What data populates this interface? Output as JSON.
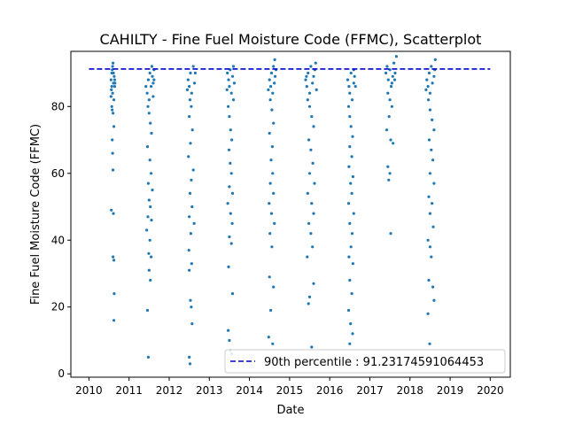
{
  "chart_data": {
    "type": "scatter",
    "title": "CAHILTY - Fine Fuel Moisture Code (FFMC), Scatterplot",
    "xlabel": "Date",
    "ylabel": "Fine Fuel Moisture Code (FFMC)",
    "xlim": [
      2009.55,
      2020.5
    ],
    "ylim": [
      -1.0,
      96.5
    ],
    "x_ticks": [
      2010,
      2011,
      2012,
      2013,
      2014,
      2015,
      2016,
      2017,
      2018,
      2019,
      2020
    ],
    "y_ticks": [
      0,
      20,
      40,
      60,
      80
    ],
    "grid": false,
    "legend_position": "lower-right",
    "colors": {
      "points": "#1f77b4",
      "reference_line": "#0000cc"
    },
    "reference_line": {
      "label": "90th percentile : 91.23174591064453",
      "value": 91.23174591064453,
      "style": "dashed"
    },
    "series": [
      {
        "points": [
          [
            2010.55,
            88
          ],
          [
            2010.57,
            86
          ],
          [
            2010.59,
            84
          ],
          [
            2010.6,
            90
          ],
          [
            2010.62,
            82
          ],
          [
            2010.64,
            88
          ],
          [
            2010.56,
            85
          ],
          [
            2010.58,
            91
          ],
          [
            2010.61,
            87
          ],
          [
            2010.63,
            89
          ],
          [
            2010.57,
            80
          ],
          [
            2010.6,
            78
          ],
          [
            2010.62,
            74
          ],
          [
            2010.58,
            70
          ],
          [
            2010.59,
            66
          ],
          [
            2010.6,
            61
          ],
          [
            2010.56,
            49
          ],
          [
            2010.61,
            48
          ],
          [
            2010.6,
            35
          ],
          [
            2010.62,
            34
          ],
          [
            2010.63,
            24
          ],
          [
            2010.62,
            16
          ],
          [
            2010.55,
            83
          ],
          [
            2010.65,
            87
          ],
          [
            2010.59,
            92
          ],
          [
            2010.61,
            90
          ],
          [
            2010.58,
            79
          ],
          [
            2010.64,
            86
          ],
          [
            2010.57,
            90
          ],
          [
            2010.6,
            93
          ],
          [
            2011.42,
            86
          ],
          [
            2011.45,
            84
          ],
          [
            2011.48,
            88
          ],
          [
            2011.5,
            82
          ],
          [
            2011.52,
            90
          ],
          [
            2011.55,
            86
          ],
          [
            2011.58,
            89
          ],
          [
            2011.6,
            87
          ],
          [
            2011.62,
            91
          ],
          [
            2011.47,
            80
          ],
          [
            2011.5,
            78
          ],
          [
            2011.53,
            75
          ],
          [
            2011.56,
            72
          ],
          [
            2011.46,
            68
          ],
          [
            2011.52,
            64
          ],
          [
            2011.55,
            60
          ],
          [
            2011.48,
            57
          ],
          [
            2011.58,
            55
          ],
          [
            2011.5,
            52
          ],
          [
            2011.53,
            50
          ],
          [
            2011.47,
            47
          ],
          [
            2011.56,
            46
          ],
          [
            2011.44,
            43
          ],
          [
            2011.52,
            40
          ],
          [
            2011.49,
            36
          ],
          [
            2011.55,
            35
          ],
          [
            2011.5,
            31
          ],
          [
            2011.53,
            28
          ],
          [
            2011.46,
            19
          ],
          [
            2011.48,
            5
          ],
          [
            2011.6,
            83
          ],
          [
            2011.62,
            88
          ],
          [
            2011.57,
            92
          ],
          [
            2012.47,
            88
          ],
          [
            2012.5,
            86
          ],
          [
            2012.53,
            90
          ],
          [
            2012.56,
            84
          ],
          [
            2012.6,
            92
          ],
          [
            2012.63,
            87
          ],
          [
            2012.52,
            82
          ],
          [
            2012.55,
            80
          ],
          [
            2012.5,
            77
          ],
          [
            2012.58,
            73
          ],
          [
            2012.53,
            69
          ],
          [
            2012.48,
            65
          ],
          [
            2012.6,
            61
          ],
          [
            2012.55,
            58
          ],
          [
            2012.52,
            54
          ],
          [
            2012.57,
            50
          ],
          [
            2012.5,
            47
          ],
          [
            2012.62,
            45
          ],
          [
            2012.54,
            42
          ],
          [
            2012.49,
            37
          ],
          [
            2012.56,
            33
          ],
          [
            2012.5,
            31
          ],
          [
            2012.53,
            22
          ],
          [
            2012.55,
            20
          ],
          [
            2012.57,
            15
          ],
          [
            2012.5,
            5
          ],
          [
            2012.52,
            3
          ],
          [
            2012.65,
            90
          ],
          [
            2012.45,
            85
          ],
          [
            2013.45,
            90
          ],
          [
            2013.48,
            88
          ],
          [
            2013.5,
            86
          ],
          [
            2013.52,
            91
          ],
          [
            2013.55,
            84
          ],
          [
            2013.58,
            89
          ],
          [
            2013.6,
            82
          ],
          [
            2013.47,
            80
          ],
          [
            2013.5,
            77
          ],
          [
            2013.53,
            73
          ],
          [
            2013.56,
            70
          ],
          [
            2013.49,
            67
          ],
          [
            2013.52,
            63
          ],
          [
            2013.55,
            60
          ],
          [
            2013.5,
            56
          ],
          [
            2013.58,
            54
          ],
          [
            2013.46,
            51
          ],
          [
            2013.53,
            48
          ],
          [
            2013.57,
            45
          ],
          [
            2013.5,
            41
          ],
          [
            2013.55,
            39
          ],
          [
            2013.48,
            32
          ],
          [
            2013.58,
            24
          ],
          [
            2013.47,
            13
          ],
          [
            2013.5,
            10
          ],
          [
            2013.52,
            7
          ],
          [
            2013.56,
            6
          ],
          [
            2013.6,
            92
          ],
          [
            2013.62,
            87
          ],
          [
            2013.44,
            85
          ],
          [
            2014.5,
            88
          ],
          [
            2014.53,
            86
          ],
          [
            2014.55,
            90
          ],
          [
            2014.58,
            84
          ],
          [
            2014.6,
            92
          ],
          [
            2014.62,
            87
          ],
          [
            2014.52,
            82
          ],
          [
            2014.56,
            79
          ],
          [
            2014.6,
            75
          ],
          [
            2014.5,
            72
          ],
          [
            2014.57,
            68
          ],
          [
            2014.54,
            64
          ],
          [
            2014.58,
            60
          ],
          [
            2014.52,
            57
          ],
          [
            2014.6,
            54
          ],
          [
            2014.49,
            51
          ],
          [
            2014.55,
            48
          ],
          [
            2014.62,
            45
          ],
          [
            2014.51,
            42
          ],
          [
            2014.56,
            38
          ],
          [
            2014.5,
            29
          ],
          [
            2014.6,
            26
          ],
          [
            2014.53,
            19
          ],
          [
            2014.48,
            11
          ],
          [
            2014.58,
            9
          ],
          [
            2014.64,
            89
          ],
          [
            2014.66,
            91
          ],
          [
            2014.47,
            85
          ],
          [
            2014.63,
            94
          ],
          [
            2015.4,
            88
          ],
          [
            2015.43,
            86
          ],
          [
            2015.46,
            90
          ],
          [
            2015.5,
            84
          ],
          [
            2015.53,
            92
          ],
          [
            2015.57,
            87
          ],
          [
            2015.6,
            89
          ],
          [
            2015.63,
            91
          ],
          [
            2015.67,
            85
          ],
          [
            2015.45,
            82
          ],
          [
            2015.5,
            80
          ],
          [
            2015.55,
            77
          ],
          [
            2015.6,
            74
          ],
          [
            2015.48,
            70
          ],
          [
            2015.53,
            67
          ],
          [
            2015.58,
            63
          ],
          [
            2015.5,
            60
          ],
          [
            2015.62,
            57
          ],
          [
            2015.45,
            54
          ],
          [
            2015.55,
            51
          ],
          [
            2015.6,
            48
          ],
          [
            2015.48,
            45
          ],
          [
            2015.53,
            42
          ],
          [
            2015.57,
            38
          ],
          [
            2015.44,
            35
          ],
          [
            2015.6,
            27
          ],
          [
            2015.5,
            23
          ],
          [
            2015.47,
            21
          ],
          [
            2015.55,
            8
          ],
          [
            2015.65,
            93
          ],
          [
            2015.42,
            89
          ],
          [
            2016.45,
            88
          ],
          [
            2016.48,
            86
          ],
          [
            2016.5,
            84
          ],
          [
            2016.53,
            90
          ],
          [
            2016.56,
            82
          ],
          [
            2016.6,
            87
          ],
          [
            2016.62,
            89
          ],
          [
            2016.47,
            80
          ],
          [
            2016.5,
            77
          ],
          [
            2016.53,
            74
          ],
          [
            2016.57,
            71
          ],
          [
            2016.5,
            68
          ],
          [
            2016.55,
            65
          ],
          [
            2016.48,
            62
          ],
          [
            2016.58,
            59
          ],
          [
            2016.52,
            57
          ],
          [
            2016.55,
            54
          ],
          [
            2016.47,
            51
          ],
          [
            2016.6,
            48
          ],
          [
            2016.5,
            45
          ],
          [
            2016.56,
            42
          ],
          [
            2016.53,
            38
          ],
          [
            2016.48,
            35
          ],
          [
            2016.58,
            33
          ],
          [
            2016.5,
            28
          ],
          [
            2016.55,
            24
          ],
          [
            2016.47,
            19
          ],
          [
            2016.52,
            15
          ],
          [
            2016.57,
            12
          ],
          [
            2016.5,
            9
          ],
          [
            2016.6,
            91
          ],
          [
            2016.64,
            86
          ],
          [
            2017.4,
            90
          ],
          [
            2017.43,
            92
          ],
          [
            2017.46,
            88
          ],
          [
            2017.5,
            91
          ],
          [
            2017.53,
            86
          ],
          [
            2017.57,
            89
          ],
          [
            2017.6,
            93
          ],
          [
            2017.63,
            90
          ],
          [
            2017.66,
            95
          ],
          [
            2017.45,
            84
          ],
          [
            2017.5,
            82
          ],
          [
            2017.55,
            80
          ],
          [
            2017.48,
            77
          ],
          [
            2017.42,
            73
          ],
          [
            2017.52,
            70
          ],
          [
            2017.58,
            69
          ],
          [
            2017.45,
            62
          ],
          [
            2017.5,
            60
          ],
          [
            2017.47,
            58
          ],
          [
            2017.52,
            42
          ],
          [
            2017.62,
            88
          ],
          [
            2017.55,
            87
          ],
          [
            2018.42,
            88
          ],
          [
            2018.45,
            86
          ],
          [
            2018.48,
            90
          ],
          [
            2018.5,
            84
          ],
          [
            2018.53,
            92
          ],
          [
            2018.56,
            87
          ],
          [
            2018.6,
            89
          ],
          [
            2018.63,
            94
          ],
          [
            2018.46,
            82
          ],
          [
            2018.5,
            79
          ],
          [
            2018.55,
            76
          ],
          [
            2018.6,
            73
          ],
          [
            2018.48,
            70
          ],
          [
            2018.53,
            67
          ],
          [
            2018.57,
            64
          ],
          [
            2018.5,
            60
          ],
          [
            2018.6,
            57
          ],
          [
            2018.47,
            53
          ],
          [
            2018.55,
            51
          ],
          [
            2018.5,
            48
          ],
          [
            2018.58,
            44
          ],
          [
            2018.45,
            40
          ],
          [
            2018.5,
            38
          ],
          [
            2018.53,
            35
          ],
          [
            2018.47,
            28
          ],
          [
            2018.57,
            26
          ],
          [
            2018.6,
            22
          ],
          [
            2018.45,
            18
          ],
          [
            2018.49,
            9
          ],
          [
            2018.62,
            91
          ],
          [
            2018.4,
            85
          ]
        ]
      }
    ]
  }
}
